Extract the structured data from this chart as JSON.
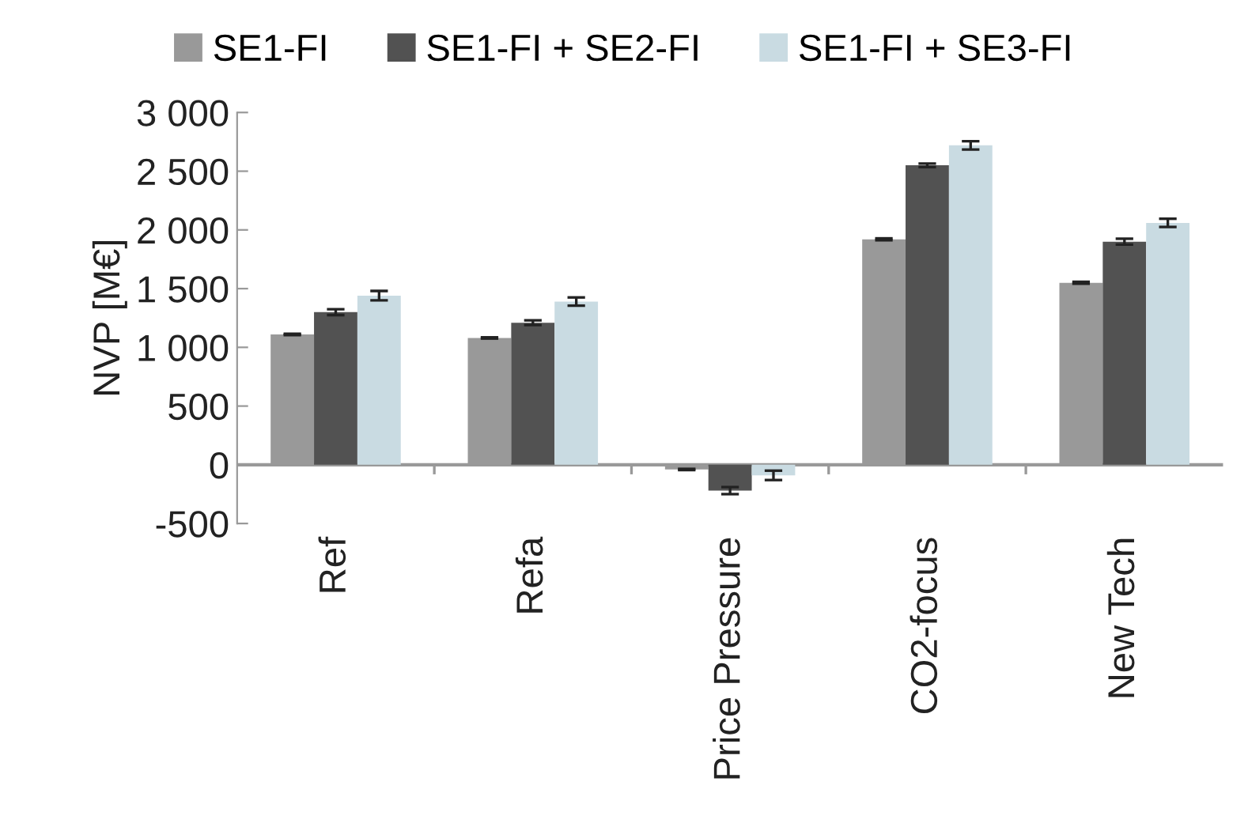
{
  "chart_data": {
    "type": "bar",
    "ylabel": "NVP [M€]",
    "categories": [
      "Ref",
      "Refa",
      "Price Pressure",
      "CO2-focus",
      "New Tech"
    ],
    "series": [
      {
        "name": "SE1-FI",
        "color": "#999999",
        "values": [
          1110,
          1080,
          -40,
          1920,
          1550
        ],
        "errors": [
          5,
          5,
          5,
          8,
          8
        ]
      },
      {
        "name": "SE1-FI + SE2-FI",
        "color": "#525252",
        "values": [
          1300,
          1210,
          -220,
          2550,
          1900
        ],
        "errors": [
          25,
          20,
          30,
          15,
          25
        ]
      },
      {
        "name": "SE1-FI + SE3-FI",
        "color": "#c9dbe2",
        "values": [
          1440,
          1390,
          -90,
          2720,
          2060
        ],
        "errors": [
          40,
          35,
          40,
          35,
          35
        ]
      }
    ],
    "ylim": [
      -500,
      3000
    ],
    "yticks": [
      {
        "value": -500,
        "label": "-500"
      },
      0,
      500,
      {
        "value": 1000,
        "label": "1 000"
      },
      {
        "value": 1500,
        "label": "1 500"
      },
      {
        "value": 2000,
        "label": "2 000"
      },
      {
        "value": 2500,
        "label": "2 500"
      },
      {
        "value": 3000,
        "label": "3 000"
      }
    ],
    "legend": "top"
  }
}
